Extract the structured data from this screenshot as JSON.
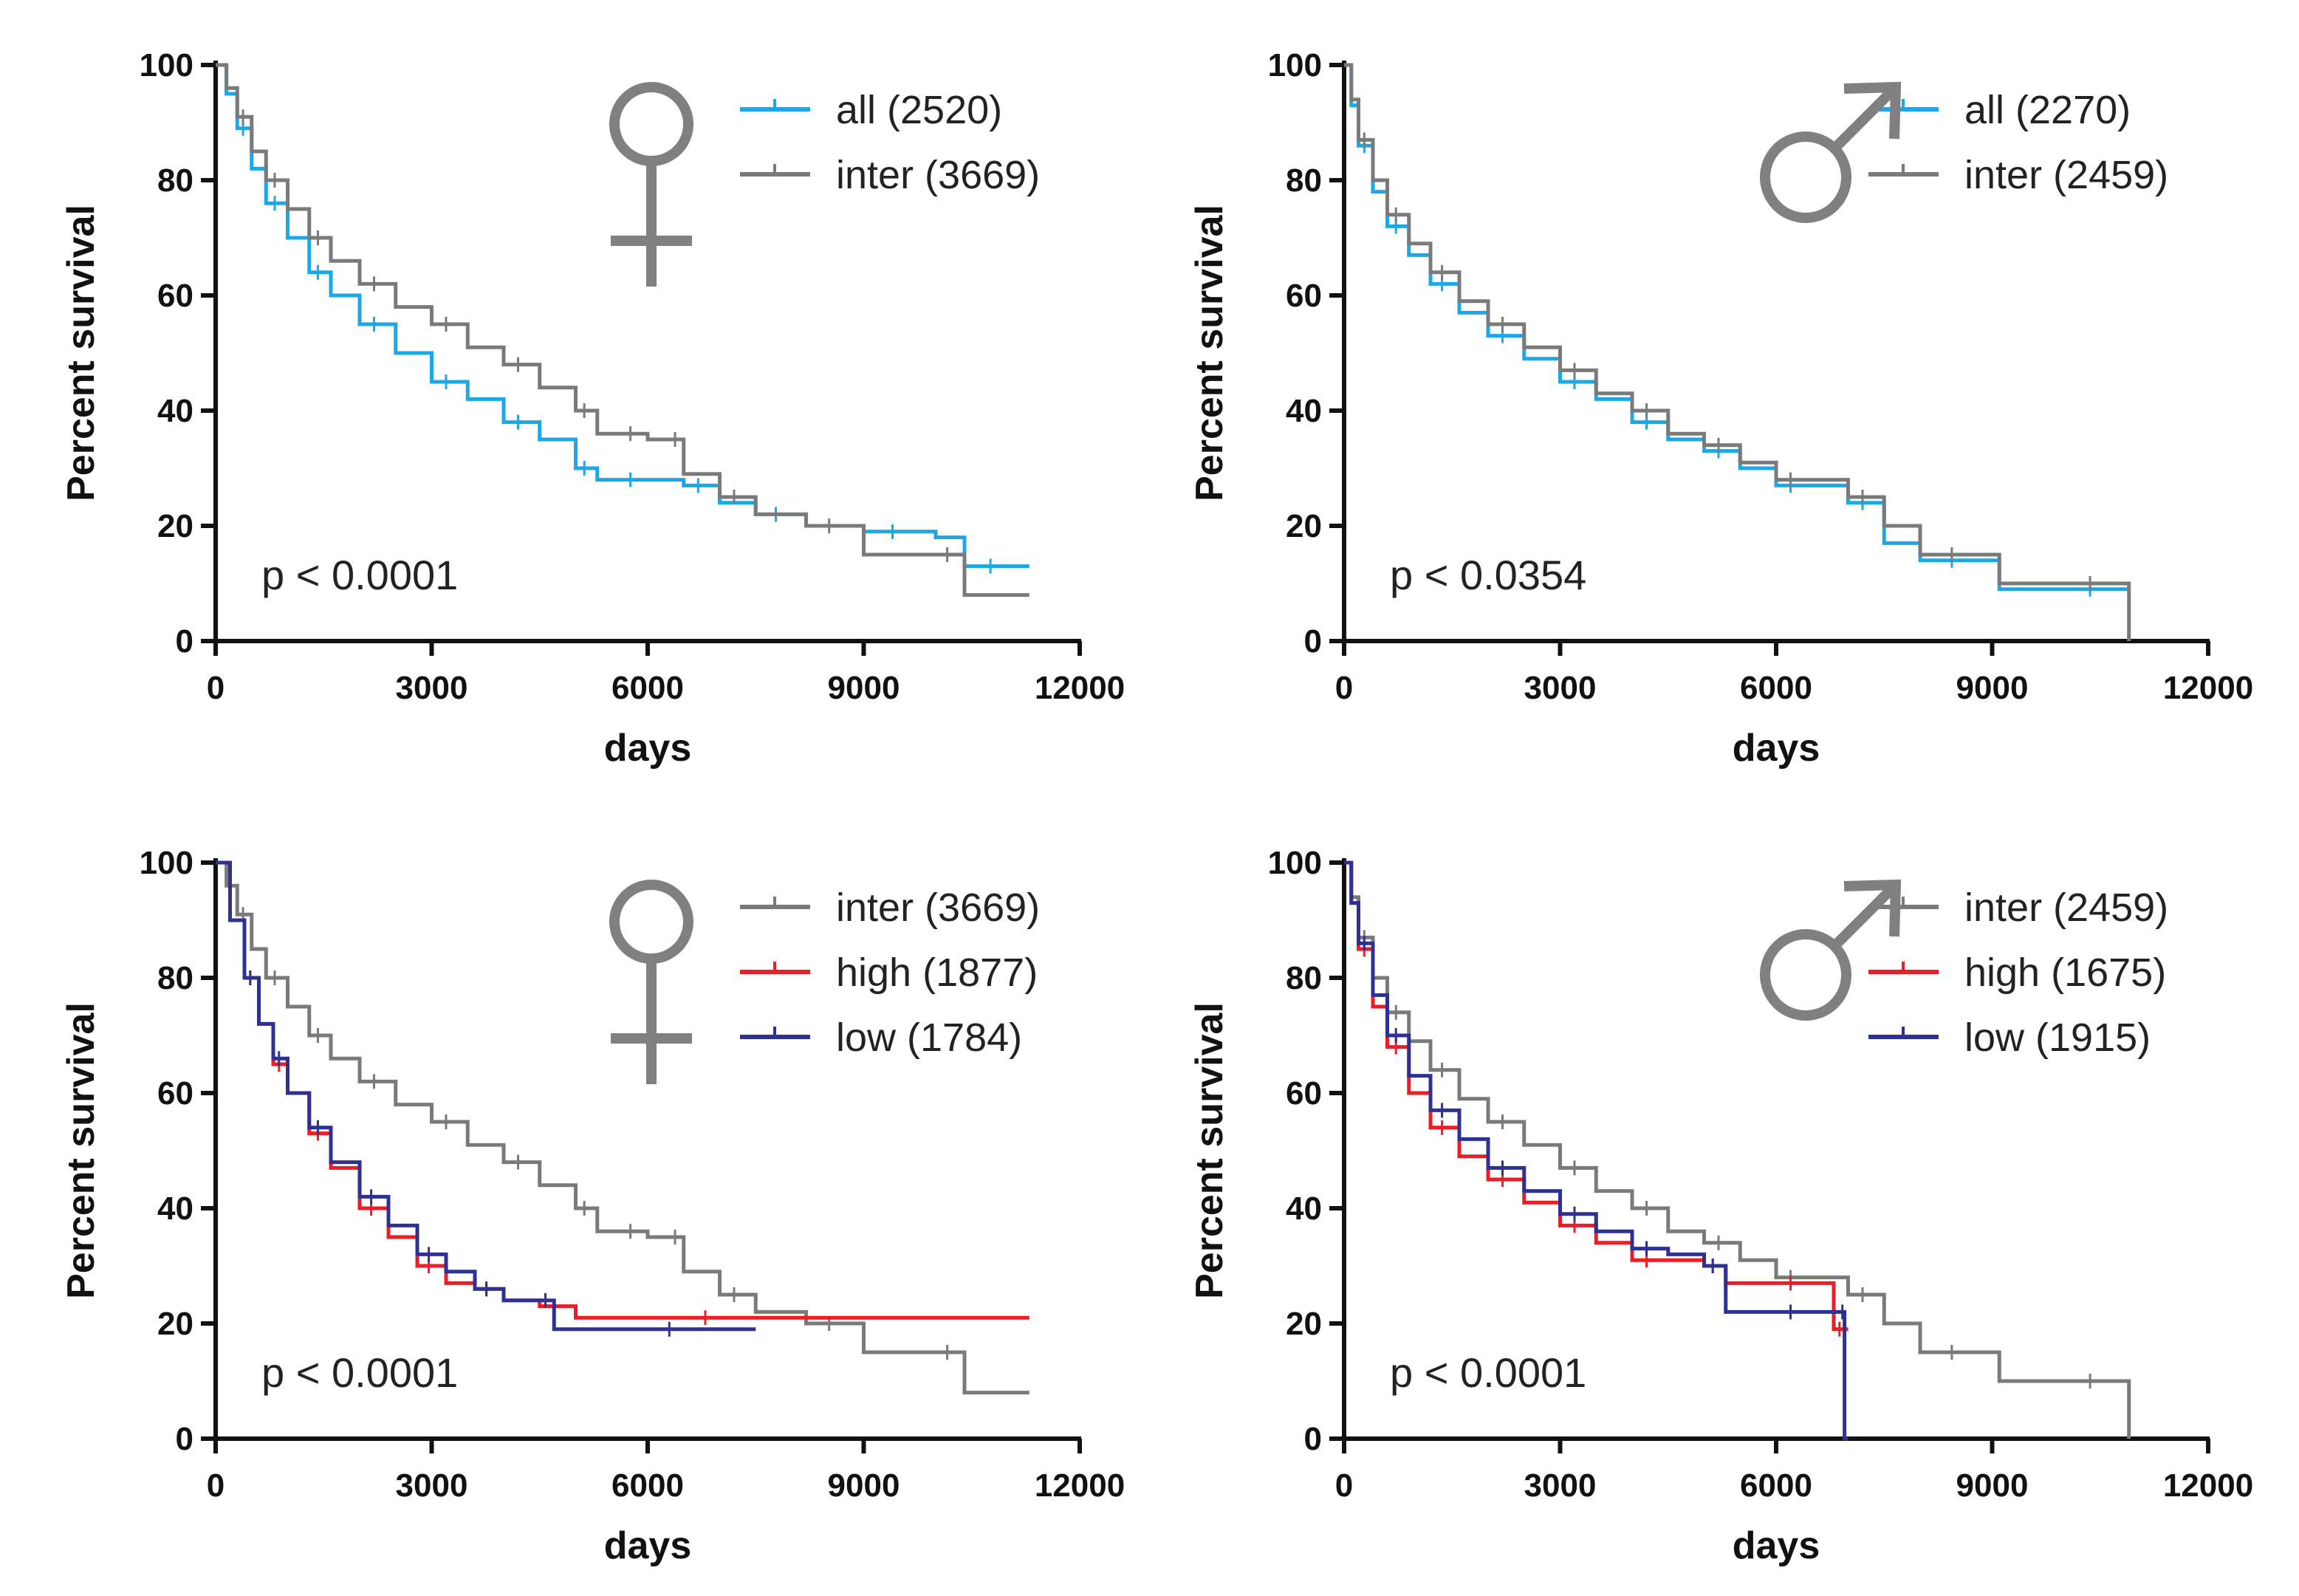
{
  "colors": {
    "all": "#1ca8e6",
    "inter": "#7a7a7a",
    "high": "#ee1c24",
    "low": "#2e3192",
    "symbol": "#808080"
  },
  "chart_data": [
    {
      "id": "female-top",
      "type": "line",
      "symbol": "female",
      "symbol_name": "female-symbol-icon",
      "xlabel": "days",
      "ylabel": "Percent survival",
      "xlim": [
        0,
        12000
      ],
      "ylim": [
        0,
        100
      ],
      "xticks": [
        "0",
        "3000",
        "6000",
        "9000",
        "12000"
      ],
      "yticks": [
        "0",
        "20",
        "40",
        "60",
        "80",
        "100"
      ],
      "pvalue": "p < 0.0001",
      "series": [
        {
          "name": "all (2520)",
          "key": "all",
          "x": [
            0,
            150,
            300,
            500,
            700,
            1000,
            1300,
            1600,
            2000,
            2500,
            3000,
            3500,
            4000,
            4500,
            5000,
            5300,
            5600,
            6000,
            6500,
            7000,
            7500,
            8200,
            9000,
            10000,
            10400,
            11300
          ],
          "y": [
            100,
            95,
            89,
            82,
            76,
            70,
            64,
            60,
            55,
            50,
            45,
            42,
            38,
            35,
            30,
            28,
            28,
            28,
            27,
            24,
            22,
            20,
            19,
            18,
            13,
            13
          ]
        },
        {
          "name": "inter (3669)",
          "key": "inter",
          "x": [
            0,
            150,
            300,
            500,
            700,
            1000,
            1300,
            1600,
            2000,
            2500,
            3000,
            3500,
            4000,
            4500,
            5000,
            5300,
            5600,
            6000,
            6300,
            6500,
            7000,
            7500,
            8200,
            9000,
            10000,
            10400,
            11300
          ],
          "y": [
            100,
            96,
            91,
            85,
            80,
            75,
            70,
            66,
            62,
            58,
            55,
            51,
            48,
            44,
            40,
            36,
            36,
            35,
            35,
            29,
            25,
            22,
            20,
            15,
            15,
            8,
            8
          ]
        }
      ]
    },
    {
      "id": "male-top",
      "type": "line",
      "symbol": "male",
      "symbol_name": "male-symbol-icon",
      "xlabel": "days",
      "ylabel": "Percent survival",
      "xlim": [
        0,
        12000
      ],
      "ylim": [
        0,
        100
      ],
      "xticks": [
        "0",
        "3000",
        "6000",
        "9000",
        "12000"
      ],
      "yticks": [
        "0",
        "20",
        "40",
        "60",
        "80",
        "100"
      ],
      "pvalue": "p < 0.0354",
      "series": [
        {
          "name": "all (2270)",
          "key": "all",
          "x": [
            0,
            100,
            200,
            400,
            600,
            900,
            1200,
            1600,
            2000,
            2500,
            3000,
            3500,
            4000,
            4500,
            5000,
            5500,
            6000,
            6500,
            7000,
            7500,
            8000,
            9100,
            10000,
            10900
          ],
          "y": [
            100,
            93,
            86,
            78,
            72,
            67,
            62,
            57,
            53,
            49,
            45,
            42,
            38,
            35,
            33,
            30,
            27,
            27,
            24,
            17,
            14,
            9,
            9,
            9
          ]
        },
        {
          "name": "inter (2459)",
          "key": "inter",
          "x": [
            0,
            100,
            200,
            400,
            600,
            900,
            1200,
            1600,
            2000,
            2500,
            3000,
            3500,
            4000,
            4500,
            5000,
            5500,
            6000,
            6500,
            7000,
            7500,
            8000,
            9100,
            10000,
            10900
          ],
          "y": [
            100,
            94,
            87,
            80,
            74,
            69,
            64,
            59,
            55,
            51,
            47,
            43,
            40,
            36,
            34,
            31,
            28,
            28,
            25,
            20,
            15,
            10,
            10,
            0
          ]
        }
      ]
    },
    {
      "id": "female-bottom",
      "type": "line",
      "symbol": "female",
      "symbol_name": "female-symbol-icon",
      "xlabel": "days",
      "ylabel": "Percent survival",
      "xlim": [
        0,
        12000
      ],
      "ylim": [
        0,
        100
      ],
      "xticks": [
        "0",
        "3000",
        "6000",
        "9000",
        "12000"
      ],
      "yticks": [
        "0",
        "20",
        "40",
        "60",
        "80",
        "100"
      ],
      "pvalue": "p < 0.0001",
      "series": [
        {
          "name": "inter (3669)",
          "key": "inter",
          "x": [
            0,
            150,
            300,
            500,
            700,
            1000,
            1300,
            1600,
            2000,
            2500,
            3000,
            3500,
            4000,
            4500,
            5000,
            5300,
            5600,
            6000,
            6300,
            6500,
            7000,
            7500,
            8200,
            9000,
            10000,
            10400,
            11300
          ],
          "y": [
            100,
            96,
            91,
            85,
            80,
            75,
            70,
            66,
            62,
            58,
            55,
            51,
            48,
            44,
            40,
            36,
            36,
            35,
            35,
            29,
            25,
            22,
            20,
            15,
            15,
            8,
            8
          ]
        },
        {
          "name": "high (1877)",
          "key": "high",
          "x": [
            0,
            200,
            400,
            600,
            800,
            1000,
            1300,
            1600,
            2000,
            2400,
            2800,
            3200,
            3600,
            4000,
            4500,
            5000,
            6000,
            8000,
            11300
          ],
          "y": [
            100,
            90,
            80,
            72,
            65,
            60,
            53,
            47,
            40,
            35,
            30,
            27,
            26,
            24,
            23,
            21,
            21,
            21,
            21
          ]
        },
        {
          "name": "low (1784)",
          "key": "low",
          "x": [
            0,
            200,
            400,
            600,
            800,
            1000,
            1300,
            1600,
            2000,
            2400,
            2800,
            3200,
            3600,
            4000,
            4500,
            4700,
            5500,
            7500
          ],
          "y": [
            100,
            90,
            80,
            72,
            66,
            60,
            54,
            48,
            42,
            37,
            32,
            29,
            26,
            24,
            24,
            19,
            19,
            19
          ]
        }
      ]
    },
    {
      "id": "male-bottom",
      "type": "line",
      "symbol": "male",
      "symbol_name": "male-symbol-icon",
      "xlabel": "days",
      "ylabel": "Percent survival",
      "xlim": [
        0,
        12000
      ],
      "ylim": [
        0,
        100
      ],
      "xticks": [
        "0",
        "3000",
        "6000",
        "9000",
        "12000"
      ],
      "yticks": [
        "0",
        "20",
        "40",
        "60",
        "80",
        "100"
      ],
      "pvalue": "p < 0.0001",
      "series": [
        {
          "name": "inter (2459)",
          "key": "inter",
          "x": [
            0,
            100,
            200,
            400,
            600,
            900,
            1200,
            1600,
            2000,
            2500,
            3000,
            3500,
            4000,
            4500,
            5000,
            5500,
            6000,
            6500,
            7000,
            7500,
            8000,
            9100,
            10000,
            10900
          ],
          "y": [
            100,
            94,
            87,
            80,
            74,
            69,
            64,
            59,
            55,
            51,
            47,
            43,
            40,
            36,
            34,
            31,
            28,
            28,
            25,
            20,
            15,
            10,
            10,
            0
          ]
        },
        {
          "name": "high (1675)",
          "key": "high",
          "x": [
            0,
            100,
            200,
            400,
            600,
            900,
            1200,
            1600,
            2000,
            2500,
            3000,
            3500,
            4000,
            4500,
            5000,
            5300,
            6000,
            6500,
            6800,
            7000
          ],
          "y": [
            100,
            93,
            85,
            75,
            68,
            60,
            54,
            49,
            45,
            41,
            37,
            34,
            31,
            31,
            30,
            27,
            27,
            27,
            19,
            19
          ]
        },
        {
          "name": "low (1915)",
          "key": "low",
          "x": [
            0,
            100,
            200,
            400,
            600,
            900,
            1200,
            1600,
            2000,
            2500,
            3000,
            3500,
            4000,
            4500,
            5000,
            5300,
            6000,
            6500,
            6900,
            6950,
            7000
          ],
          "y": [
            100,
            93,
            86,
            77,
            70,
            63,
            57,
            52,
            47,
            43,
            39,
            36,
            33,
            32,
            30,
            22,
            22,
            22,
            22,
            0,
            0
          ]
        }
      ]
    }
  ]
}
